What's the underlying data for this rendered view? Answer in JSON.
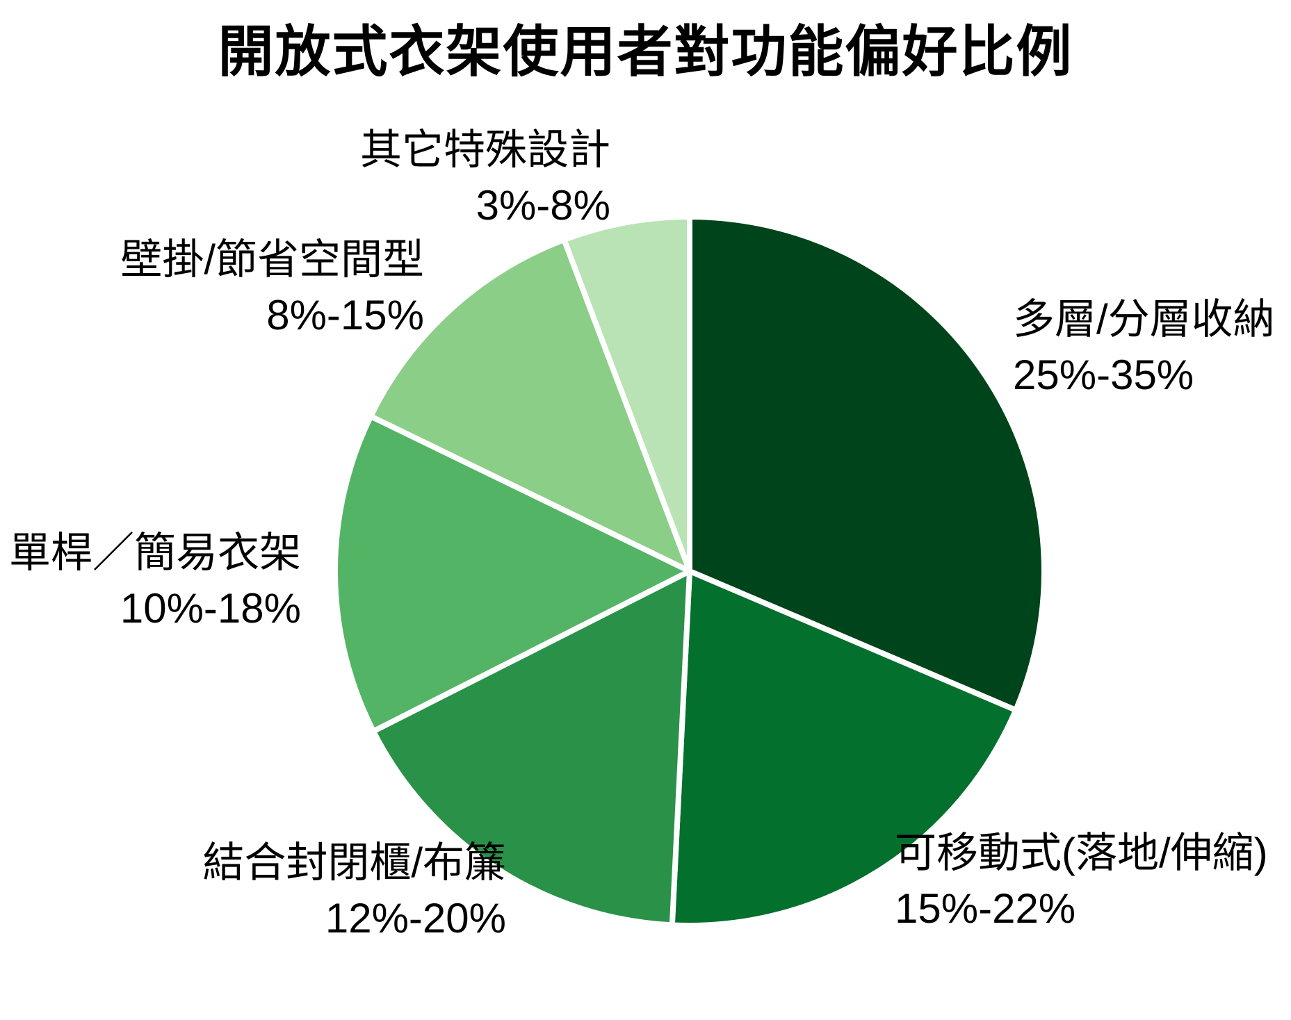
{
  "chart_data": {
    "type": "pie",
    "title": "開放式衣架使用者對功能偏好比例",
    "start_angle": "12-oclock",
    "direction": "clockwise",
    "background": "#ffffff",
    "text_color": "#000000",
    "wedge_stroke": "#ffffff",
    "segments": [
      {
        "label": "多層/分層收納",
        "range": "25%-35%",
        "value": 30,
        "color": "#00441b",
        "label_side": "right"
      },
      {
        "label": "可移動式(落地/伸縮)",
        "range": "15%-22%",
        "value": 18.5,
        "color": "#04702d",
        "label_side": "right"
      },
      {
        "label": "結合封閉櫃/布簾",
        "range": "12%-20%",
        "value": 16,
        "color": "#2a9149",
        "label_side": "left"
      },
      {
        "label": "單桿／簡易衣架",
        "range": "10%-18%",
        "value": 14,
        "color": "#53b466",
        "label_side": "left"
      },
      {
        "label": "壁掛/節省空間型",
        "range": "8%-15%",
        "value": 11.5,
        "color": "#8bce88",
        "label_side": "left"
      },
      {
        "label": "其它特殊設計",
        "range": "3%-8%",
        "value": 5.5,
        "color": "#b9e3b4",
        "label_side": "top"
      }
    ]
  }
}
